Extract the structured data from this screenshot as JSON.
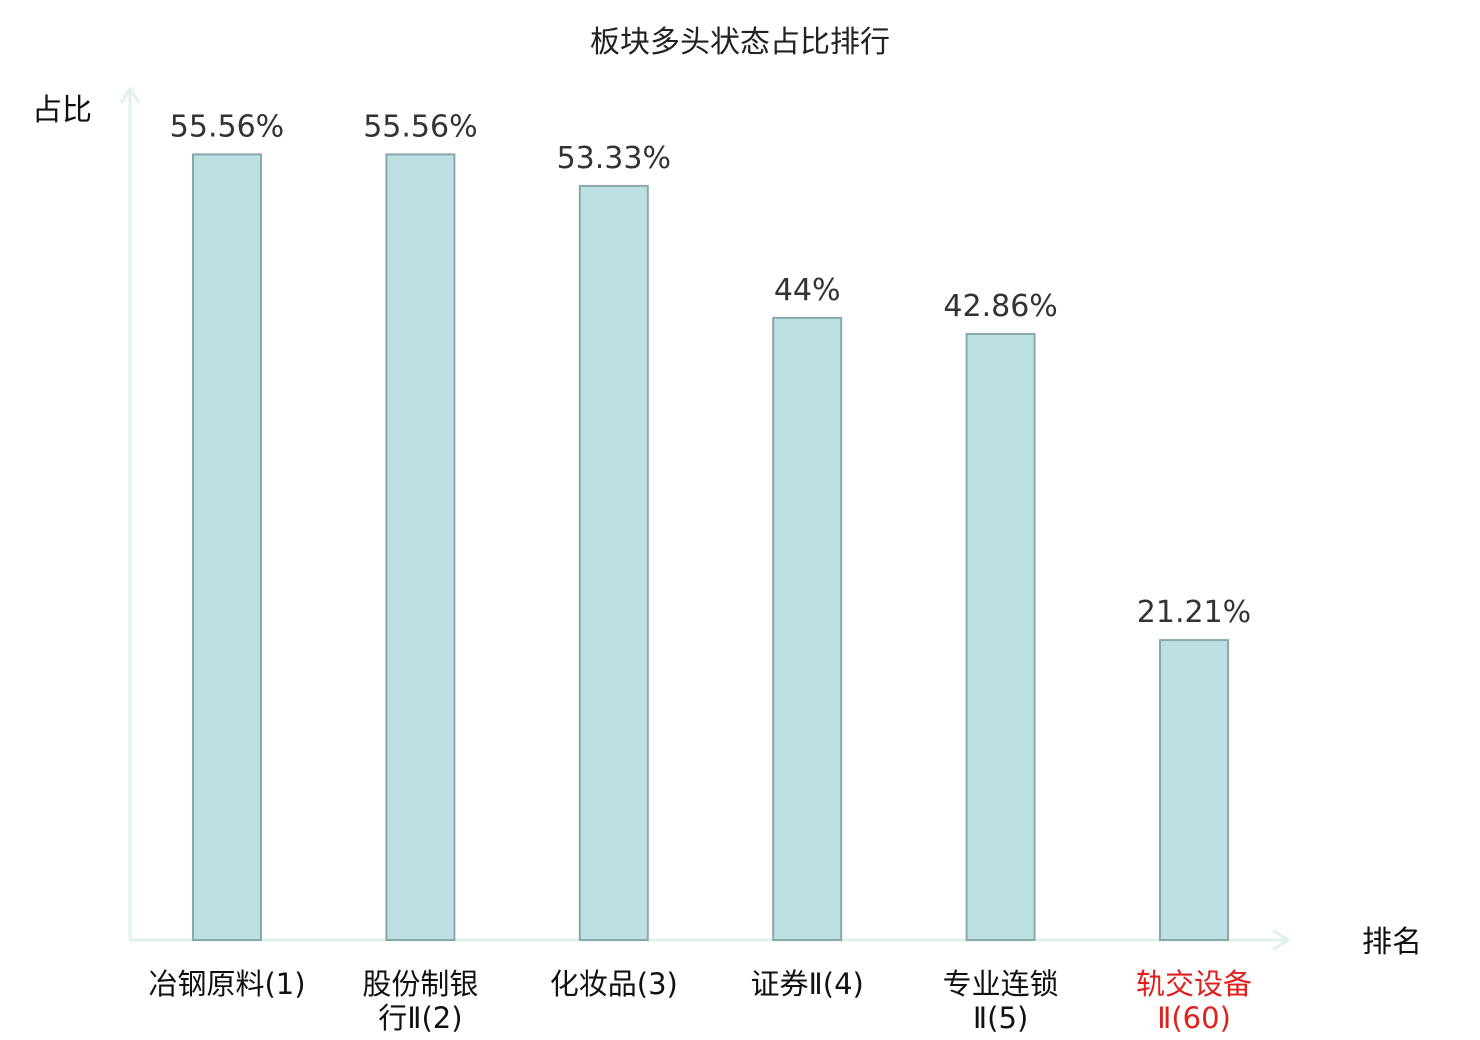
{
  "chart_data": {
    "type": "bar",
    "title": "板块多头状态占比排行",
    "ylabel": "占比",
    "xlabel": "排名",
    "categories": [
      {
        "lines": [
          "冶钢原料(1)"
        ],
        "highlight": false
      },
      {
        "lines": [
          "股份制银",
          "行Ⅱ(2)"
        ],
        "highlight": false
      },
      {
        "lines": [
          "化妆品(3)"
        ],
        "highlight": false
      },
      {
        "lines": [
          "证券Ⅱ(4)"
        ],
        "highlight": false
      },
      {
        "lines": [
          "专业连锁",
          "Ⅱ(5)"
        ],
        "highlight": false
      },
      {
        "lines": [
          "轨交设备",
          "Ⅱ(60)"
        ],
        "highlight": true
      }
    ],
    "values": [
      55.56,
      55.56,
      53.33,
      44,
      42.86,
      21.21
    ],
    "value_labels": [
      "55.56%",
      "55.56%",
      "53.33%",
      "44%",
      "42.86%",
      "21.21%"
    ],
    "unit": "%",
    "ylim": [
      0,
      60
    ],
    "grid": false,
    "colors": {
      "bar_fill": "#bde0e3",
      "bar_stroke": "#8aa8aa",
      "axis": "#e0f1ee",
      "category_text": "#111111",
      "highlight_text": "#e0201c"
    }
  }
}
